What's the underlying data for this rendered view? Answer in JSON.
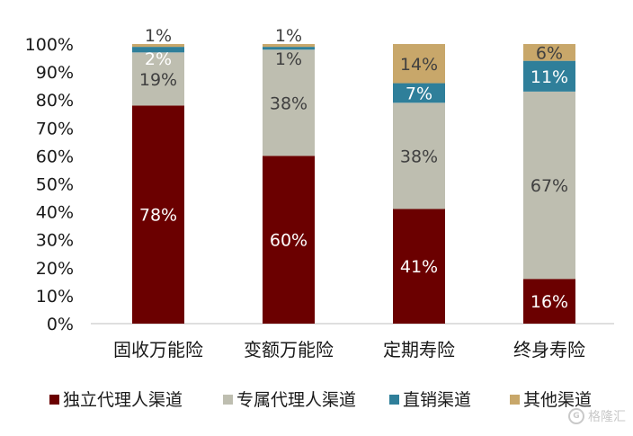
{
  "chart_data": {
    "type": "bar",
    "stacked": true,
    "percent": true,
    "categories": [
      "固收万能险",
      "变额万能险",
      "定期寿险",
      "终身寿险"
    ],
    "series": [
      {
        "name": "独立代理人渠道",
        "color": "#6b0000",
        "values": [
          78,
          60,
          41,
          16
        ],
        "labels": [
          "78%",
          "60%",
          "41%",
          "16%"
        ]
      },
      {
        "name": "专属代理人渠道",
        "color": "#bebeb0",
        "values": [
          19,
          38,
          38,
          67
        ],
        "labels": [
          "19%",
          "38%",
          "38%",
          "67%"
        ]
      },
      {
        "name": "直销渠道",
        "color": "#2f7f9a",
        "values": [
          2,
          1,
          7,
          11
        ],
        "labels": [
          "2%",
          "1%",
          "7%",
          "11%"
        ]
      },
      {
        "name": "其他渠道",
        "color": "#c8a76a",
        "values": [
          1,
          1,
          14,
          6
        ],
        "labels": [
          "1%",
          "1%",
          "14%",
          "6%"
        ]
      }
    ],
    "yticks": [
      "0%",
      "10%",
      "20%",
      "30%",
      "40%",
      "50%",
      "60%",
      "70%",
      "80%",
      "90%",
      "100%"
    ],
    "ylim": [
      0,
      100
    ],
    "legend_position": "bottom",
    "grid": false
  },
  "watermark": {
    "text": "格隆汇",
    "icon": "G"
  }
}
